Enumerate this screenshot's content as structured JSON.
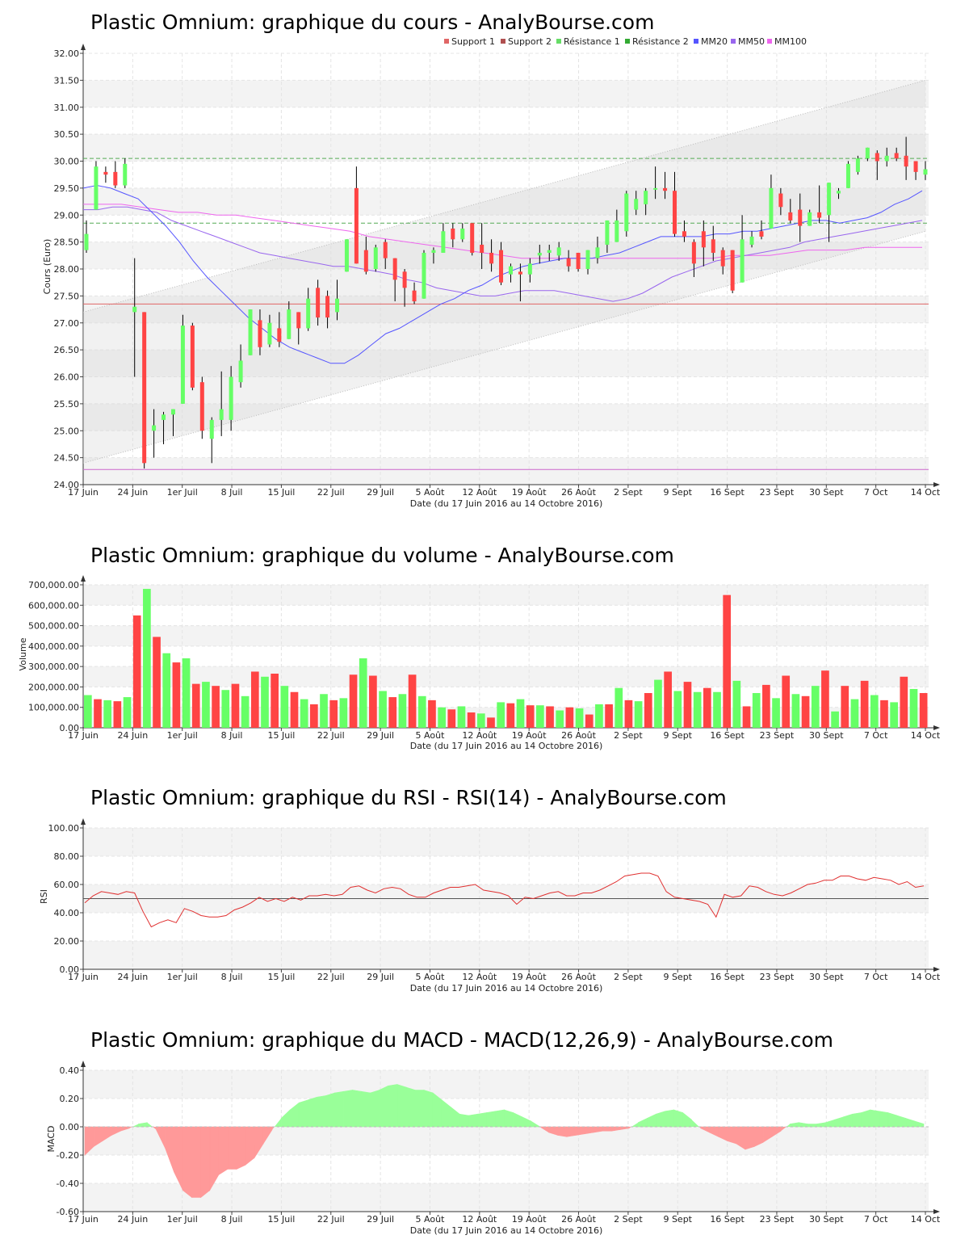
{
  "x_axis": {
    "ticks": [
      "17 Juin",
      "24 Juin",
      "1er Juil",
      "8 Juil",
      "15 Juil",
      "22 Juil",
      "29 Juil",
      "5 Août",
      "12 Août",
      "19 Août",
      "26 Août",
      "2 Sept",
      "9 Sept",
      "16 Sept",
      "23 Sept",
      "30 Sept",
      "7 Oct",
      "14 Oct"
    ],
    "label": "Date (du 17 Juin 2016 au 14 Octobre 2016)"
  },
  "colors": {
    "up": "#66ff66",
    "down": "#ff4444",
    "mm20": "#5555ff",
    "mm50": "#9966ee",
    "mm100": "#ee66ee",
    "support": "#e06666",
    "resistance": "#55aa55"
  },
  "chart_data": [
    {
      "type": "candlestick",
      "title": "Plastic Omnium: graphique du cours - AnalyBourse.com",
      "ylabel": "Cours (Euro)",
      "ylim": [
        24.0,
        32.0
      ],
      "yticks": [
        "24.00",
        "24.50",
        "25.00",
        "25.50",
        "26.00",
        "26.50",
        "27.00",
        "27.50",
        "28.00",
        "28.50",
        "29.00",
        "29.50",
        "30.00",
        "30.50",
        "31.00",
        "31.50",
        "32.00"
      ],
      "legend": [
        "Support 1",
        "Support 2",
        "Résistance 1",
        "Résistance 2",
        "MM20",
        "MM50",
        "MM100"
      ],
      "legend_colors": [
        "#e06666",
        "#b05050",
        "#66dd66",
        "#33aa33",
        "#5555ff",
        "#9966ee",
        "#ee66ee"
      ],
      "levels": {
        "support1": 27.35,
        "support2": 24.28,
        "resistance1": 30.05,
        "resistance2": 28.85
      },
      "trend_channel": {
        "upper": [
          27.2,
          31.5
        ],
        "lower": [
          24.4,
          28.7
        ]
      },
      "candles": [
        [
          28.35,
          28.65,
          28.3,
          28.9
        ],
        [
          29.1,
          29.9,
          29.1,
          30.0
        ],
        [
          29.8,
          29.75,
          29.6,
          29.9
        ],
        [
          29.8,
          29.55,
          29.5,
          30.0
        ],
        [
          29.55,
          29.95,
          29.5,
          30.05
        ],
        [
          27.2,
          27.3,
          26.0,
          28.2
        ],
        [
          27.2,
          24.4,
          24.3,
          27.2
        ],
        [
          25.0,
          25.1,
          24.5,
          25.4
        ],
        [
          25.2,
          25.3,
          24.75,
          25.35
        ],
        [
          25.3,
          25.4,
          24.9,
          25.4
        ],
        [
          25.5,
          26.95,
          25.5,
          27.15
        ],
        [
          26.95,
          25.8,
          25.75,
          27.0
        ],
        [
          25.9,
          25.0,
          24.85,
          26.0
        ],
        [
          24.85,
          25.2,
          24.4,
          25.25
        ],
        [
          25.2,
          25.4,
          24.9,
          26.1
        ],
        [
          25.2,
          26.0,
          25.0,
          26.2
        ],
        [
          25.9,
          26.3,
          25.8,
          26.6
        ],
        [
          26.4,
          27.25,
          26.4,
          27.25
        ],
        [
          27.05,
          26.55,
          26.4,
          27.25
        ],
        [
          26.6,
          27.0,
          26.55,
          27.15
        ],
        [
          26.9,
          26.65,
          26.55,
          27.2
        ],
        [
          26.7,
          27.25,
          26.7,
          27.4
        ],
        [
          27.2,
          26.9,
          26.6,
          27.2
        ],
        [
          26.9,
          27.45,
          26.85,
          27.65
        ],
        [
          27.65,
          27.1,
          26.95,
          27.8
        ],
        [
          27.5,
          27.1,
          26.9,
          27.6
        ],
        [
          27.2,
          27.45,
          27.05,
          27.8
        ],
        [
          27.95,
          28.55,
          27.95,
          28.55
        ],
        [
          29.5,
          28.1,
          28.1,
          29.9
        ],
        [
          28.35,
          27.95,
          27.9,
          28.6
        ],
        [
          28.0,
          28.4,
          27.95,
          28.45
        ],
        [
          28.5,
          28.2,
          28.0,
          28.55
        ],
        [
          28.2,
          27.8,
          27.4,
          28.2
        ],
        [
          27.95,
          27.65,
          27.3,
          28.0
        ],
        [
          27.6,
          27.4,
          27.35,
          27.75
        ],
        [
          27.45,
          28.3,
          27.45,
          28.35
        ],
        [
          28.3,
          28.35,
          28.1,
          28.4
        ],
        [
          28.3,
          28.7,
          28.3,
          28.85
        ],
        [
          28.75,
          28.55,
          28.4,
          28.85
        ],
        [
          28.55,
          28.75,
          28.5,
          28.85
        ],
        [
          28.85,
          28.3,
          28.25,
          28.85
        ],
        [
          28.45,
          28.3,
          28.0,
          28.85
        ],
        [
          28.3,
          28.1,
          27.95,
          28.55
        ],
        [
          28.35,
          27.75,
          27.7,
          28.5
        ],
        [
          27.9,
          28.05,
          27.75,
          28.1
        ],
        [
          27.95,
          27.9,
          27.4,
          28.1
        ],
        [
          27.9,
          28.1,
          27.75,
          28.2
        ],
        [
          28.25,
          28.3,
          28.1,
          28.45
        ],
        [
          28.3,
          28.35,
          28.15,
          28.45
        ],
        [
          28.25,
          28.4,
          28.15,
          28.5
        ],
        [
          28.2,
          28.05,
          27.95,
          28.35
        ],
        [
          28.3,
          28.0,
          27.95,
          28.3
        ],
        [
          28.0,
          28.35,
          27.9,
          28.35
        ],
        [
          28.2,
          28.4,
          28.1,
          28.6
        ],
        [
          28.45,
          28.9,
          28.3,
          28.9
        ],
        [
          28.5,
          28.9,
          28.5,
          29.1
        ],
        [
          28.7,
          29.4,
          28.6,
          29.45
        ],
        [
          29.1,
          29.3,
          29.0,
          29.45
        ],
        [
          29.2,
          29.45,
          29.0,
          29.5
        ],
        [
          29.5,
          29.5,
          29.3,
          29.9
        ],
        [
          29.5,
          29.45,
          29.3,
          29.8
        ],
        [
          29.45,
          28.65,
          28.6,
          29.8
        ],
        [
          28.7,
          28.6,
          28.5,
          28.9
        ],
        [
          28.5,
          28.1,
          27.85,
          28.55
        ],
        [
          28.7,
          28.4,
          28.05,
          28.9
        ],
        [
          28.55,
          28.3,
          28.15,
          28.8
        ],
        [
          28.35,
          28.05,
          27.9,
          28.4
        ],
        [
          28.35,
          27.6,
          27.55,
          28.35
        ],
        [
          27.75,
          28.55,
          27.75,
          29.0
        ],
        [
          28.45,
          28.6,
          28.4,
          28.7
        ],
        [
          28.7,
          28.6,
          28.55,
          28.9
        ],
        [
          28.75,
          29.5,
          28.75,
          29.75
        ],
        [
          29.4,
          29.15,
          29.0,
          29.5
        ],
        [
          29.05,
          28.9,
          28.85,
          29.3
        ],
        [
          29.1,
          28.8,
          28.5,
          29.4
        ],
        [
          28.8,
          29.05,
          28.8,
          29.1
        ],
        [
          29.05,
          28.95,
          28.85,
          29.55
        ],
        [
          29.0,
          29.6,
          28.5,
          29.6
        ],
        [
          29.4,
          29.45,
          29.3,
          29.5
        ],
        [
          29.5,
          29.95,
          29.5,
          30.0
        ],
        [
          29.8,
          30.05,
          29.75,
          30.1
        ],
        [
          30.05,
          30.25,
          30.0,
          30.25
        ],
        [
          30.15,
          30.0,
          29.65,
          30.2
        ],
        [
          30.0,
          30.1,
          29.9,
          30.25
        ],
        [
          30.15,
          30.05,
          30.0,
          30.25
        ],
        [
          30.1,
          29.9,
          29.65,
          30.45
        ],
        [
          30.0,
          29.8,
          29.65,
          30.0
        ],
        [
          29.75,
          29.85,
          29.65,
          30.0
        ]
      ],
      "mm20": [
        29.5,
        29.55,
        29.5,
        29.4,
        29.3,
        29.05,
        28.8,
        28.5,
        28.15,
        27.85,
        27.6,
        27.35,
        27.1,
        26.9,
        26.7,
        26.55,
        26.45,
        26.35,
        26.25,
        26.25,
        26.4,
        26.6,
        26.8,
        26.9,
        27.05,
        27.2,
        27.35,
        27.45,
        27.6,
        27.7,
        27.85,
        27.95,
        28.05,
        28.1,
        28.15,
        28.2,
        28.2,
        28.2,
        28.25,
        28.3,
        28.4,
        28.5,
        28.6,
        28.6,
        28.6,
        28.6,
        28.65,
        28.65,
        28.7,
        28.7,
        28.75,
        28.8,
        28.85,
        28.9,
        28.9,
        28.85,
        28.9,
        28.95,
        29.05,
        29.2,
        29.3,
        29.45
      ],
      "mm50": [
        29.1,
        29.1,
        29.15,
        29.15,
        29.1,
        29.05,
        28.9,
        28.8,
        28.7,
        28.6,
        28.5,
        28.4,
        28.3,
        28.25,
        28.2,
        28.15,
        28.1,
        28.05,
        28.05,
        28.0,
        27.95,
        27.9,
        27.8,
        27.75,
        27.65,
        27.6,
        27.55,
        27.5,
        27.5,
        27.55,
        27.6,
        27.6,
        27.6,
        27.55,
        27.5,
        27.45,
        27.4,
        27.45,
        27.55,
        27.7,
        27.85,
        27.95,
        28.05,
        28.15,
        28.2,
        28.25,
        28.3,
        28.35,
        28.4,
        28.5,
        28.55,
        28.6,
        28.65,
        28.7,
        28.75,
        28.8,
        28.85,
        28.9
      ],
      "mm100": [
        29.2,
        29.2,
        29.2,
        29.15,
        29.1,
        29.05,
        29.05,
        29.0,
        29.0,
        28.95,
        28.9,
        28.85,
        28.8,
        28.75,
        28.7,
        28.6,
        28.55,
        28.5,
        28.45,
        28.4,
        28.35,
        28.3,
        28.25,
        28.2,
        28.2,
        28.2,
        28.2,
        28.2,
        28.2,
        28.2,
        28.2,
        28.2,
        28.2,
        28.2,
        28.25,
        28.25,
        28.25,
        28.3,
        28.35,
        28.35,
        28.35,
        28.4,
        28.4,
        28.4,
        28.4
      ]
    },
    {
      "type": "bar",
      "title": "Plastic Omnium: graphique du volume - AnalyBourse.com",
      "ylabel": "Volume",
      "ylim": [
        0,
        700000
      ],
      "yticks": [
        "0.00",
        "100,000.00",
        "200,000.00",
        "300,000.00",
        "400,000.00",
        "500,000.00",
        "600,000.00",
        "700,000.00"
      ],
      "values": [
        160000,
        140000,
        135000,
        130000,
        150000,
        550000,
        680000,
        445000,
        365000,
        320000,
        340000,
        215000,
        225000,
        205000,
        185000,
        215000,
        155000,
        275000,
        250000,
        265000,
        205000,
        175000,
        140000,
        115000,
        165000,
        135000,
        145000,
        260000,
        340000,
        255000,
        180000,
        150000,
        165000,
        260000,
        155000,
        135000,
        100000,
        90000,
        105000,
        75000,
        70000,
        50000,
        125000,
        120000,
        140000,
        110000,
        110000,
        105000,
        85000,
        100000,
        95000,
        65000,
        115000,
        115000,
        195000,
        135000,
        130000,
        170000,
        235000,
        275000,
        180000,
        225000,
        175000,
        195000,
        175000,
        650000,
        230000,
        105000,
        170000,
        210000,
        145000,
        255000,
        165000,
        155000,
        205000,
        280000,
        80000,
        205000,
        140000,
        230000,
        160000,
        135000,
        125000,
        250000,
        190000,
        170000
      ]
    },
    {
      "type": "line",
      "title": "Plastic Omnium: graphique du RSI - RSI(14) - AnalyBourse.com",
      "ylabel": "RSI",
      "ylim": [
        0,
        100
      ],
      "yticks": [
        "0.00",
        "20.00",
        "40.00",
        "60.00",
        "80.00",
        "100.00"
      ],
      "reference": 50,
      "values": [
        47,
        52,
        55,
        54,
        53,
        55,
        54,
        41,
        30,
        33,
        35,
        33,
        43,
        41,
        38,
        37,
        37,
        38,
        42,
        44,
        47,
        51,
        48,
        50,
        48,
        51,
        49,
        52,
        52,
        53,
        52,
        53,
        58,
        59,
        56,
        54,
        57,
        58,
        57,
        53,
        51,
        51,
        54,
        56,
        58,
        58,
        59,
        60,
        56,
        55,
        54,
        52,
        46,
        51,
        50,
        52,
        54,
        55,
        52,
        52,
        54,
        54,
        56,
        59,
        62,
        66,
        67,
        68,
        68,
        66,
        55,
        51,
        50,
        49,
        48,
        46,
        37,
        53,
        51,
        52,
        59,
        58,
        55,
        53,
        52,
        54,
        57,
        60,
        61,
        63,
        63,
        66,
        66,
        64,
        63,
        65,
        64,
        63,
        60,
        62,
        58,
        59
      ]
    },
    {
      "type": "area",
      "title": "Plastic Omnium: graphique du MACD - MACD(12,26,9) - AnalyBourse.com",
      "ylabel": "MACD",
      "ylim": [
        -0.6,
        0.4
      ],
      "yticks": [
        "-0.60",
        "-0.40",
        "-0.20",
        "0.00",
        "0.20",
        "0.40"
      ],
      "values": [
        -0.2,
        -0.14,
        -0.1,
        -0.06,
        -0.03,
        -0.01,
        0.02,
        0.03,
        -0.02,
        -0.15,
        -0.32,
        -0.45,
        -0.5,
        -0.5,
        -0.45,
        -0.34,
        -0.3,
        -0.3,
        -0.27,
        -0.22,
        -0.12,
        -0.02,
        0.06,
        0.12,
        0.17,
        0.19,
        0.21,
        0.22,
        0.24,
        0.25,
        0.26,
        0.25,
        0.24,
        0.26,
        0.29,
        0.3,
        0.28,
        0.26,
        0.26,
        0.24,
        0.19,
        0.14,
        0.09,
        0.08,
        0.09,
        0.1,
        0.11,
        0.12,
        0.1,
        0.07,
        0.04,
        0.0,
        -0.04,
        -0.06,
        -0.07,
        -0.06,
        -0.05,
        -0.04,
        -0.03,
        -0.03,
        -0.02,
        -0.01,
        0.03,
        0.06,
        0.09,
        0.11,
        0.12,
        0.1,
        0.05,
        -0.01,
        -0.04,
        -0.07,
        -0.1,
        -0.12,
        -0.16,
        -0.14,
        -0.11,
        -0.07,
        -0.03,
        0.02,
        0.03,
        0.02,
        0.02,
        0.03,
        0.05,
        0.07,
        0.09,
        0.1,
        0.12,
        0.11,
        0.1,
        0.08,
        0.06,
        0.04,
        0.02
      ]
    }
  ]
}
